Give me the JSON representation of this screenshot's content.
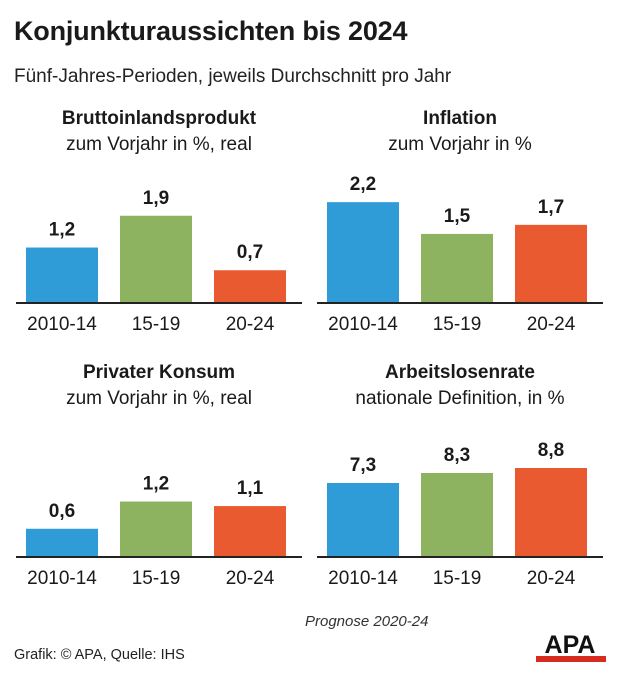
{
  "title": "Konjunkturaussichten bis 2024",
  "subtitle": "Fünf-Jahres-Perioden, jeweils Durchschnitt pro Jahr",
  "note": "Prognose 2020-24",
  "source": "Grafik: © APA, Quelle: IHS",
  "logo_text": "APA",
  "colors": {
    "bar1": "#2f9bd7",
    "bar2": "#8db260",
    "bar3": "#ea5a30",
    "axis": "#222222"
  },
  "chart_data": [
    {
      "type": "bar",
      "title": "Bruttoinlandsprodukt",
      "ylabel": "zum Vorjahr in %, real",
      "categories": [
        "2010-14",
        "15-19",
        "20-24"
      ],
      "values": [
        1.2,
        1.9,
        0.7
      ],
      "value_labels": [
        "1,2",
        "1,9",
        "0,7"
      ],
      "ylim": [
        0,
        2.6
      ]
    },
    {
      "type": "bar",
      "title": "Inflation",
      "ylabel": "zum Vorjahr in %",
      "categories": [
        "2010-14",
        "15-19",
        "20-24"
      ],
      "values": [
        2.2,
        1.5,
        1.7
      ],
      "value_labels": [
        "2,2",
        "1,5",
        "1,7"
      ],
      "ylim": [
        0,
        2.6
      ]
    },
    {
      "type": "bar",
      "title": "Privater Konsum",
      "ylabel": "zum Vorjahr in %, real",
      "categories": [
        "2010-14",
        "15-19",
        "20-24"
      ],
      "values": [
        0.6,
        1.2,
        1.1
      ],
      "value_labels": [
        "0,6",
        "1,2",
        "1,1"
      ],
      "ylim": [
        0,
        2.6
      ]
    },
    {
      "type": "bar",
      "title": "Arbeitslosenrate",
      "ylabel": "nationale Definition, in %",
      "categories": [
        "2010-14",
        "15-19",
        "20-24"
      ],
      "values": [
        7.3,
        8.3,
        8.8
      ],
      "value_labels": [
        "7,3",
        "8,3",
        "8,8"
      ],
      "ylim": [
        0,
        11.8
      ]
    }
  ]
}
